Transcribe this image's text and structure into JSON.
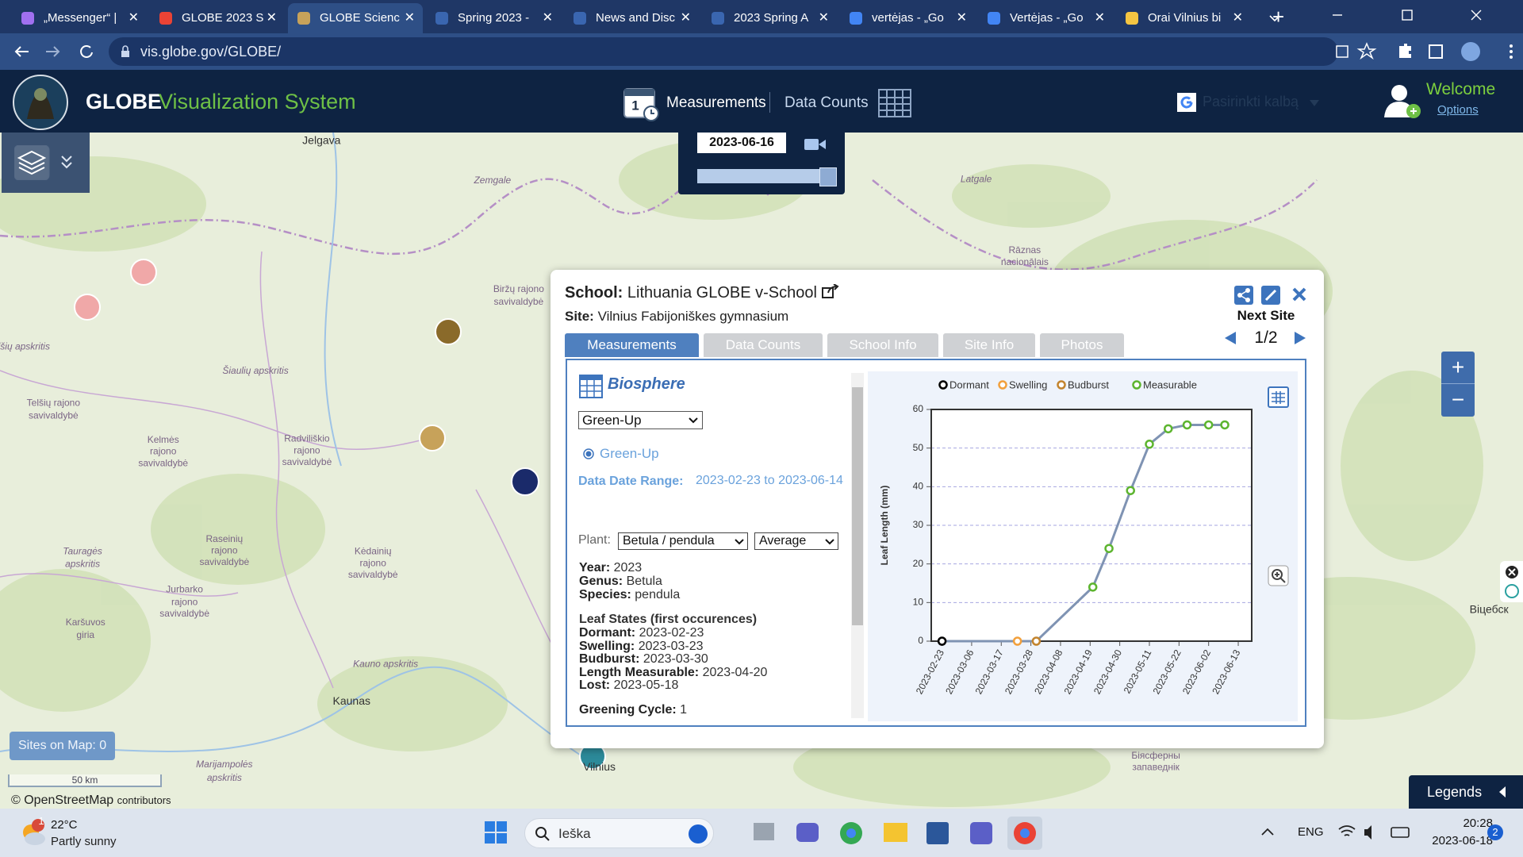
{
  "browser": {
    "tabs": [
      "„Messenger“ |",
      "GLOBE 2023 S",
      "GLOBE Scienc",
      "Spring 2023 -",
      "News and Disc",
      "2023 Spring A",
      "vertėjas - „Go",
      "Vertėjas - „Go",
      "Orai Vilnius bi"
    ],
    "url": "vis.globe.gov/GLOBE/"
  },
  "header": {
    "brand": "GLOBE",
    "app_name": "Visualization System",
    "calendar_day": "1",
    "measurements": "Measurements",
    "data_counts": "Data Counts",
    "language": "Pasirinkti kalbą",
    "welcome": "Welcome",
    "options": "Options"
  },
  "map": {
    "date": "2023-06-16",
    "labels": [
      "Jelgava",
      "Zemgale",
      "Latgale",
      "Rāznas",
      "nacionālais",
      "Biržų rajono",
      "savivaldybė",
      "elšių apskritis",
      "Šiaulių apskritis",
      "Telšių rajono",
      "savivaldybė",
      "Radviliškio",
      "rajono",
      "savivaldybė",
      "Kelmės",
      "rajono",
      "savivaldybė",
      "Raseinių",
      "rajono",
      "savivaldybė",
      "Tauragės",
      "apskritis",
      "Kėdainių",
      "rajono",
      "savivaldybė",
      "Jurbarko",
      "rajono",
      "savivaldybė",
      "Karšuvos",
      "giria",
      "Kauno apskritis",
      "Kaunas",
      "Marijampolės",
      "apskritis",
      "Vilnius",
      "Віцебск",
      "Біясферны",
      "запаведнік"
    ],
    "sites_on_map": "Sites on Map: 0",
    "scale": "50 km",
    "attribution": "© OpenStreetMap",
    "attribution_suffix": "contributors",
    "legends": "Legends",
    "zoom_in": "+",
    "zoom_out": "−"
  },
  "popup": {
    "school_label": "School:",
    "school": "Lithuania GLOBE v-School",
    "site_label": "Site:",
    "site": "Vilnius Fabijoniškes gymnasium",
    "next_site": "Next Site",
    "pager": "1/2",
    "tabs": [
      "Measurements",
      "Data Counts",
      "School Info",
      "Site Info",
      "Photos"
    ],
    "section": "Biosphere",
    "protocol_select": "Green-Up",
    "protocol_radio": "Green-Up",
    "date_range_label": "Data Date Range:",
    "date_range": "2023-02-23 to 2023-06-14",
    "plant_label": "Plant:",
    "plant": "Betula / pendula",
    "statistic": "Average",
    "details": [
      {
        "label": "Year:",
        "value": "2023"
      },
      {
        "label": "Genus:",
        "value": "Betula"
      },
      {
        "label": "Species:",
        "value": "pendula"
      }
    ],
    "leaf_states_title": "Leaf States (first occurences)",
    "leaf_states": [
      {
        "label": "Dormant:",
        "value": "2023-02-23"
      },
      {
        "label": "Swelling:",
        "value": "2023-03-23"
      },
      {
        "label": "Budburst:",
        "value": "2023-03-30"
      },
      {
        "label": "Length Measurable:",
        "value": "2023-04-20"
      },
      {
        "label": "Lost:",
        "value": "2023-05-18"
      }
    ],
    "greening_cycle": {
      "label": "Greening Cycle:",
      "value": "1"
    }
  },
  "chart_data": {
    "type": "line",
    "y_label": "Leaf Length (mm)",
    "xlim": [
      "2023-02-19",
      "2023-06-18"
    ],
    "xticks": [
      "2023-02-23",
      "2023-03-06",
      "2023-03-17",
      "2023-03-28",
      "2023-04-08",
      "2023-04-19",
      "2023-04-30",
      "2023-05-11",
      "2023-05-22",
      "2023-06-02",
      "2023-06-13"
    ],
    "ylim": [
      0,
      60
    ],
    "yticks": [
      0,
      10,
      20,
      30,
      40,
      50,
      60
    ],
    "grid": true,
    "line_color": "#7f93b3",
    "series": [
      {
        "name": "Dormant",
        "color": "#000000",
        "x": [
          "2023-02-23"
        ],
        "values": [
          0
        ]
      },
      {
        "name": "Swelling",
        "color": "#f2a03c",
        "x": [
          "2023-03-23"
        ],
        "values": [
          0
        ]
      },
      {
        "name": "Budburst",
        "color": "#c3842e",
        "x": [
          "2023-03-30"
        ],
        "values": [
          0
        ]
      },
      {
        "name": "Measurable",
        "color": "#5db52f",
        "x": [
          "2023-04-20",
          "2023-04-26",
          "2023-05-04",
          "2023-05-11",
          "2023-05-18",
          "2023-05-25",
          "2023-06-02",
          "2023-06-08"
        ],
        "values": [
          14,
          24,
          39,
          51,
          55,
          56,
          56,
          56
        ]
      }
    ]
  },
  "taskbar": {
    "notification": "1",
    "temperature": "22°C",
    "weather": "Partly sunny",
    "search": "Ieška",
    "language": "ENG",
    "time": "20:28",
    "date": "2023-06-18",
    "badge": "2"
  }
}
